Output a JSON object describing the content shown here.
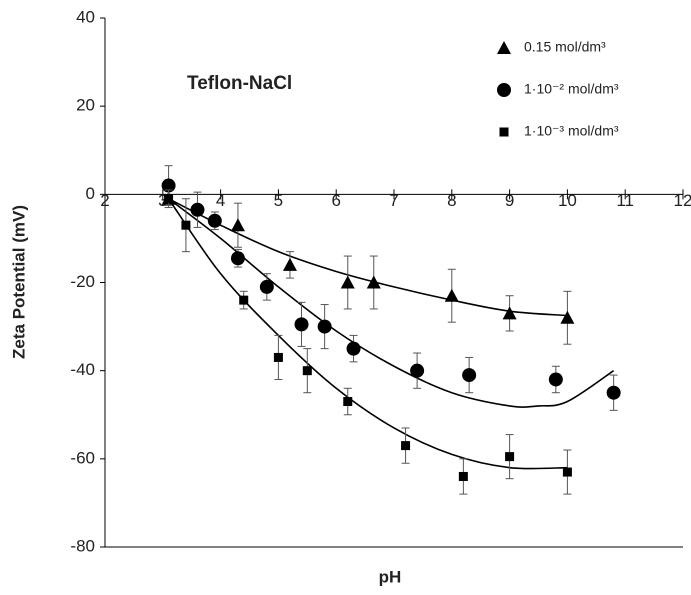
{
  "chart_data": {
    "type": "scatter",
    "annotation": "Teflon-NaCl",
    "x_label": "pH",
    "y_label": "Zeta Potential (mV)",
    "xlim": [
      2,
      12
    ],
    "xticks": [
      2,
      3,
      4,
      5,
      6,
      7,
      8,
      9,
      10,
      11,
      12
    ],
    "ylim": [
      -80,
      40
    ],
    "yticks": [
      -80,
      -60,
      -40,
      -20,
      0,
      20,
      40
    ],
    "color": "#000000",
    "series": [
      {
        "name": "0.15 mol/dm³",
        "marker": "triangle",
        "x": [
          3.1,
          4.3,
          5.2,
          6.2,
          6.65,
          8,
          9,
          10
        ],
        "values": [
          -1,
          -7,
          -16,
          -20,
          -20,
          -23,
          -27,
          -28
        ],
        "errors": [
          0,
          5,
          3,
          6,
          6,
          6,
          4,
          6
        ],
        "fit": {
          "x": [
            3.1,
            4,
            5,
            6,
            7,
            8,
            9,
            10
          ],
          "values": [
            -1,
            -7,
            -13,
            -17.5,
            -21,
            -24,
            -26.5,
            -27.5
          ]
        }
      },
      {
        "name": "1·10⁻² mol/dm³",
        "marker": "circle",
        "x": [
          3.1,
          3.6,
          3.9,
          4.3,
          4.8,
          5.4,
          5.8,
          6.3,
          7.4,
          8.3,
          9.8,
          10.8
        ],
        "values": [
          2,
          -3.5,
          -6,
          -14.5,
          -21,
          -29.5,
          -30,
          -35,
          -40,
          -41,
          -42,
          -45
        ],
        "errors": [
          4.5,
          4,
          2,
          2,
          3,
          5,
          5,
          3,
          4,
          4,
          3,
          4
        ],
        "fit": {
          "x": [
            3.1,
            4,
            5,
            6,
            7,
            8,
            9,
            9.5,
            10,
            10.8
          ],
          "values": [
            -1,
            -10,
            -21,
            -31,
            -39,
            -45,
            -48,
            -48,
            -47,
            -40
          ]
        }
      },
      {
        "name": "1·10⁻³ mol/dm³",
        "marker": "square",
        "x": [
          3.1,
          3.4,
          4.4,
          5,
          5.5,
          6.2,
          7.2,
          8.2,
          9,
          10
        ],
        "values": [
          -1,
          -7,
          -24,
          -37,
          -40,
          -47,
          -57,
          -64,
          -59.5,
          -63
        ],
        "errors": [
          2,
          6,
          2,
          5,
          5,
          3,
          4,
          4,
          5,
          5
        ],
        "fit": {
          "x": [
            3.1,
            4,
            5,
            6,
            7,
            8,
            9,
            10
          ],
          "values": [
            -1,
            -18,
            -32,
            -44,
            -53,
            -59,
            -62,
            -62
          ]
        }
      }
    ]
  }
}
